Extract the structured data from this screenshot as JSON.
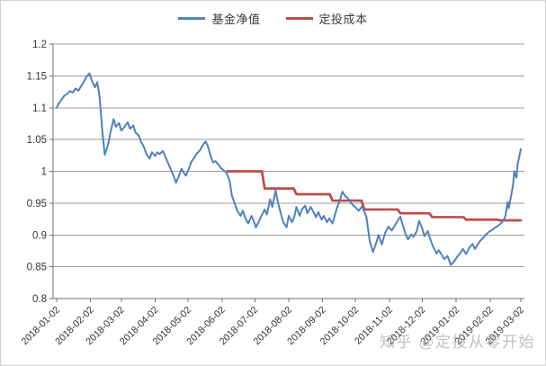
{
  "watermark": {
    "text": "知乎 @定投从零开始",
    "color": "#8f8f8f"
  },
  "legend": {
    "items": [
      {
        "label": "基金净值",
        "color": "#4F81BD"
      },
      {
        "label": "定投成本",
        "color": "#BE4B48"
      }
    ]
  },
  "chart_data": {
    "type": "line",
    "title": "",
    "xlabel": "",
    "ylabel": "",
    "grid": "horizontal",
    "legend_position": "top-center",
    "ylim": [
      0.8,
      1.2
    ],
    "y_tick_labels": [
      "0.8",
      "0.85",
      "0.9",
      "0.95",
      "1",
      "1.05",
      "1.1",
      "1.15",
      "1.2"
    ],
    "x_range": [
      "2018-01-02",
      "2019-03-02"
    ],
    "x_tick_labels": [
      "2018-01-02",
      "2018-02-02",
      "2018-03-02",
      "2018-04-02",
      "2018-05-02",
      "2018-06-02",
      "2018-07-02",
      "2018-08-02",
      "2018-09-02",
      "2018-10-02",
      "2018-11-02",
      "2018-12-02",
      "2019-01-02",
      "2019-02-02",
      "2019-03-02"
    ],
    "axis_color": "#6f6f6f",
    "grid_color": "#9b9b9b",
    "series": [
      {
        "name": "基金净值",
        "color": "#4F81BD",
        "style": "line",
        "points": [
          [
            "2018-01-02",
            1.1
          ],
          [
            "2018-01-04",
            1.107
          ],
          [
            "2018-01-07",
            1.114
          ],
          [
            "2018-01-09",
            1.119
          ],
          [
            "2018-01-12",
            1.122
          ],
          [
            "2018-01-14",
            1.126
          ],
          [
            "2018-01-17",
            1.124
          ],
          [
            "2018-01-19",
            1.13
          ],
          [
            "2018-01-22",
            1.127
          ],
          [
            "2018-01-24",
            1.133
          ],
          [
            "2018-01-27",
            1.141
          ],
          [
            "2018-01-29",
            1.148
          ],
          [
            "2018-02-01",
            1.154
          ],
          [
            "2018-02-03",
            1.143
          ],
          [
            "2018-02-06",
            1.132
          ],
          [
            "2018-02-08",
            1.14
          ],
          [
            "2018-02-10",
            1.12
          ],
          [
            "2018-02-13",
            1.058
          ],
          [
            "2018-02-15",
            1.026
          ],
          [
            "2018-02-18",
            1.042
          ],
          [
            "2018-02-20",
            1.06
          ],
          [
            "2018-02-23",
            1.082
          ],
          [
            "2018-02-25",
            1.07
          ],
          [
            "2018-02-28",
            1.076
          ],
          [
            "2018-03-02",
            1.064
          ],
          [
            "2018-03-05",
            1.07
          ],
          [
            "2018-03-08",
            1.077
          ],
          [
            "2018-03-10",
            1.067
          ],
          [
            "2018-03-13",
            1.072
          ],
          [
            "2018-03-15",
            1.061
          ],
          [
            "2018-03-18",
            1.056
          ],
          [
            "2018-03-20",
            1.047
          ],
          [
            "2018-03-23",
            1.037
          ],
          [
            "2018-03-25",
            1.027
          ],
          [
            "2018-03-28",
            1.02
          ],
          [
            "2018-03-30",
            1.03
          ],
          [
            "2018-04-02",
            1.024
          ],
          [
            "2018-04-04",
            1.03
          ],
          [
            "2018-04-06",
            1.027
          ],
          [
            "2018-04-09",
            1.032
          ],
          [
            "2018-04-11",
            1.024
          ],
          [
            "2018-04-14",
            1.012
          ],
          [
            "2018-04-16",
            1.004
          ],
          [
            "2018-04-19",
            0.992
          ],
          [
            "2018-04-21",
            0.982
          ],
          [
            "2018-04-24",
            0.994
          ],
          [
            "2018-04-26",
            1.004
          ],
          [
            "2018-04-28",
            0.998
          ],
          [
            "2018-04-30",
            0.993
          ],
          [
            "2018-05-03",
            1.005
          ],
          [
            "2018-05-05",
            1.015
          ],
          [
            "2018-05-08",
            1.022
          ],
          [
            "2018-05-10",
            1.028
          ],
          [
            "2018-05-13",
            1.033
          ],
          [
            "2018-05-15",
            1.04
          ],
          [
            "2018-05-18",
            1.047
          ],
          [
            "2018-05-20",
            1.04
          ],
          [
            "2018-05-23",
            1.022
          ],
          [
            "2018-05-25",
            1.014
          ],
          [
            "2018-05-27",
            1.016
          ],
          [
            "2018-05-30",
            1.01
          ],
          [
            "2018-06-01",
            1.005
          ],
          [
            "2018-06-04",
            1.001
          ],
          [
            "2018-06-06",
            0.998
          ],
          [
            "2018-06-09",
            0.985
          ],
          [
            "2018-06-11",
            0.962
          ],
          [
            "2018-06-14",
            0.948
          ],
          [
            "2018-06-16",
            0.938
          ],
          [
            "2018-06-19",
            0.93
          ],
          [
            "2018-06-21",
            0.938
          ],
          [
            "2018-06-24",
            0.924
          ],
          [
            "2018-06-26",
            0.918
          ],
          [
            "2018-06-29",
            0.93
          ],
          [
            "2018-07-01",
            0.922
          ],
          [
            "2018-07-03",
            0.912
          ],
          [
            "2018-07-06",
            0.922
          ],
          [
            "2018-07-08",
            0.93
          ],
          [
            "2018-07-11",
            0.94
          ],
          [
            "2018-07-13",
            0.932
          ],
          [
            "2018-07-16",
            0.956
          ],
          [
            "2018-07-18",
            0.944
          ],
          [
            "2018-07-21",
            0.97
          ],
          [
            "2018-07-23",
            0.952
          ],
          [
            "2018-07-26",
            0.932
          ],
          [
            "2018-07-28",
            0.92
          ],
          [
            "2018-07-31",
            0.912
          ],
          [
            "2018-08-02",
            0.93
          ],
          [
            "2018-08-05",
            0.92
          ],
          [
            "2018-08-07",
            0.928
          ],
          [
            "2018-08-09",
            0.944
          ],
          [
            "2018-08-12",
            0.93
          ],
          [
            "2018-08-14",
            0.94
          ],
          [
            "2018-08-17",
            0.946
          ],
          [
            "2018-08-19",
            0.934
          ],
          [
            "2018-08-22",
            0.944
          ],
          [
            "2018-08-24",
            0.938
          ],
          [
            "2018-08-27",
            0.928
          ],
          [
            "2018-08-29",
            0.936
          ],
          [
            "2018-09-01",
            0.924
          ],
          [
            "2018-09-03",
            0.93
          ],
          [
            "2018-09-06",
            0.92
          ],
          [
            "2018-09-08",
            0.926
          ],
          [
            "2018-09-11",
            0.918
          ],
          [
            "2018-09-13",
            0.93
          ],
          [
            "2018-09-15",
            0.942
          ],
          [
            "2018-09-18",
            0.956
          ],
          [
            "2018-09-20",
            0.968
          ],
          [
            "2018-09-23",
            0.96
          ],
          [
            "2018-09-25",
            0.958
          ],
          [
            "2018-09-28",
            0.95
          ],
          [
            "2018-10-02",
            0.943
          ],
          [
            "2018-10-05",
            0.938
          ],
          [
            "2018-10-08",
            0.945
          ],
          [
            "2018-10-12",
            0.928
          ],
          [
            "2018-10-15",
            0.89
          ],
          [
            "2018-10-18",
            0.873
          ],
          [
            "2018-10-21",
            0.888
          ],
          [
            "2018-10-23",
            0.9
          ],
          [
            "2018-10-26",
            0.885
          ],
          [
            "2018-10-29",
            0.903
          ],
          [
            "2018-11-01",
            0.913
          ],
          [
            "2018-11-04",
            0.907
          ],
          [
            "2018-11-07",
            0.915
          ],
          [
            "2018-11-09",
            0.921
          ],
          [
            "2018-11-12",
            0.929
          ],
          [
            "2018-11-14",
            0.916
          ],
          [
            "2018-11-17",
            0.9
          ],
          [
            "2018-11-19",
            0.893
          ],
          [
            "2018-11-22",
            0.901
          ],
          [
            "2018-11-24",
            0.897
          ],
          [
            "2018-11-27",
            0.906
          ],
          [
            "2018-11-29",
            0.922
          ],
          [
            "2018-12-02",
            0.91
          ],
          [
            "2018-12-04",
            0.898
          ],
          [
            "2018-12-07",
            0.906
          ],
          [
            "2018-12-10",
            0.89
          ],
          [
            "2018-12-12",
            0.881
          ],
          [
            "2018-12-15",
            0.871
          ],
          [
            "2018-12-17",
            0.876
          ],
          [
            "2018-12-20",
            0.868
          ],
          [
            "2018-12-22",
            0.862
          ],
          [
            "2018-12-25",
            0.867
          ],
          [
            "2018-12-28",
            0.853
          ],
          [
            "2018-12-31",
            0.858
          ],
          [
            "2019-01-03",
            0.866
          ],
          [
            "2019-01-06",
            0.872
          ],
          [
            "2019-01-08",
            0.878
          ],
          [
            "2019-01-11",
            0.87
          ],
          [
            "2019-01-14",
            0.88
          ],
          [
            "2019-01-17",
            0.886
          ],
          [
            "2019-01-19",
            0.878
          ],
          [
            "2019-01-22",
            0.886
          ],
          [
            "2019-01-24",
            0.891
          ],
          [
            "2019-01-27",
            0.896
          ],
          [
            "2019-01-29",
            0.9
          ],
          [
            "2019-02-01",
            0.905
          ],
          [
            "2019-02-04",
            0.908
          ],
          [
            "2019-02-06",
            0.911
          ],
          [
            "2019-02-09",
            0.914
          ],
          [
            "2019-02-11",
            0.917
          ],
          [
            "2019-02-14",
            0.922
          ],
          [
            "2019-02-16",
            0.93
          ],
          [
            "2019-02-18",
            0.952
          ],
          [
            "2019-02-19",
            0.942
          ],
          [
            "2019-02-21",
            0.96
          ],
          [
            "2019-02-23",
            0.98
          ],
          [
            "2019-02-24",
            1.0
          ],
          [
            "2019-02-26",
            0.99
          ],
          [
            "2019-02-27",
            1.01
          ],
          [
            "2019-03-02",
            1.035
          ]
        ]
      },
      {
        "name": "定投成本",
        "color": "#BE4B48",
        "style": "step",
        "end_date": "2019-03-02",
        "points": [
          [
            "2018-06-07",
            1.0
          ],
          [
            "2018-07-11",
            0.973
          ],
          [
            "2018-08-09",
            0.964
          ],
          [
            "2018-09-11",
            0.954
          ],
          [
            "2018-10-10",
            0.94
          ],
          [
            "2018-11-12",
            0.934
          ],
          [
            "2018-12-11",
            0.928
          ],
          [
            "2019-01-11",
            0.924
          ],
          [
            "2019-02-11",
            0.923
          ]
        ]
      }
    ]
  }
}
